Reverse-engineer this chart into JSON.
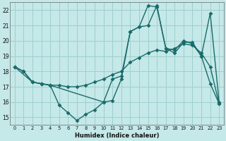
{
  "xlabel": "Humidex (Indice chaleur)",
  "bg_color": "#c5e8e8",
  "grid_color": "#9fcfcf",
  "line_color": "#1a6b6b",
  "xlim": [
    -0.5,
    23.5
  ],
  "ylim": [
    14.5,
    22.5
  ],
  "xticks": [
    0,
    1,
    2,
    3,
    4,
    5,
    6,
    7,
    8,
    9,
    10,
    11,
    12,
    13,
    14,
    15,
    16,
    17,
    18,
    19,
    20,
    21,
    22,
    23
  ],
  "yticks": [
    15,
    16,
    17,
    18,
    19,
    20,
    21,
    22
  ],
  "line1_x": [
    0,
    2,
    3,
    4,
    10,
    11,
    12,
    13,
    14,
    15,
    16,
    17,
    18,
    19,
    20,
    21,
    22,
    23
  ],
  "line1_y": [
    18.3,
    17.3,
    17.2,
    17.1,
    16.0,
    16.1,
    17.5,
    20.6,
    20.9,
    22.3,
    22.2,
    19.5,
    19.2,
    19.9,
    19.9,
    19.0,
    21.8,
    16.0
  ],
  "line2_x": [
    0,
    1,
    2,
    3,
    4,
    5,
    6,
    7,
    8,
    9,
    10,
    11,
    12,
    13,
    14,
    15,
    16,
    17,
    18,
    19,
    20,
    21,
    22,
    23
  ],
  "line2_y": [
    18.3,
    18.0,
    17.3,
    17.2,
    17.1,
    15.8,
    15.3,
    14.8,
    15.2,
    15.5,
    16.0,
    17.5,
    17.7,
    20.6,
    20.9,
    21.0,
    22.3,
    19.5,
    19.4,
    20.0,
    19.8,
    19.0,
    17.2,
    15.9
  ],
  "line3_x": [
    0,
    1,
    2,
    3,
    4,
    5,
    6,
    7,
    8,
    9,
    10,
    11,
    12,
    13,
    14,
    15,
    16,
    17,
    18,
    19,
    20,
    21,
    22,
    23
  ],
  "line3_y": [
    18.3,
    18.0,
    17.3,
    17.2,
    17.1,
    17.1,
    17.0,
    17.0,
    17.1,
    17.3,
    17.5,
    17.8,
    18.0,
    18.6,
    18.9,
    19.2,
    19.4,
    19.3,
    19.5,
    19.8,
    19.7,
    19.2,
    18.3,
    15.9
  ]
}
